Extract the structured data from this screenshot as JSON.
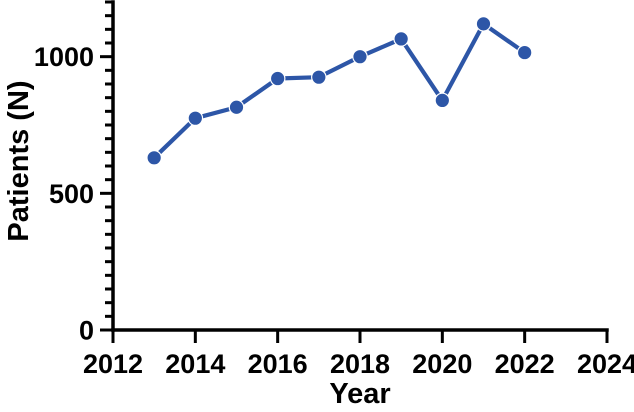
{
  "figure": {
    "background": "#ffffff"
  },
  "chart_data": {
    "type": "line",
    "title": "",
    "xlabel": "Year",
    "ylabel": "Patients (N)",
    "x": [
      2013,
      2014,
      2015,
      2016,
      2017,
      2018,
      2019,
      2020,
      2021,
      2022
    ],
    "series": [
      {
        "name": "Patients (N)",
        "values": [
          630,
          775,
          815,
          920,
          925,
          1000,
          1065,
          840,
          1120,
          1015
        ],
        "color": "#2d56a7",
        "marker": "circle"
      }
    ],
    "xlim": [
      2012,
      2024
    ],
    "ylim": [
      0,
      1200
    ],
    "x_ticks": [
      2012,
      2014,
      2016,
      2018,
      2020,
      2022,
      2024
    ],
    "y_ticks": [
      0,
      500,
      1000
    ],
    "y_minor_tick_step": 50,
    "grid": false,
    "legend": null,
    "axis_color": "#000000",
    "tick_label_color": "#000000",
    "line_width": 4.2,
    "marker_size": 7.2
  }
}
